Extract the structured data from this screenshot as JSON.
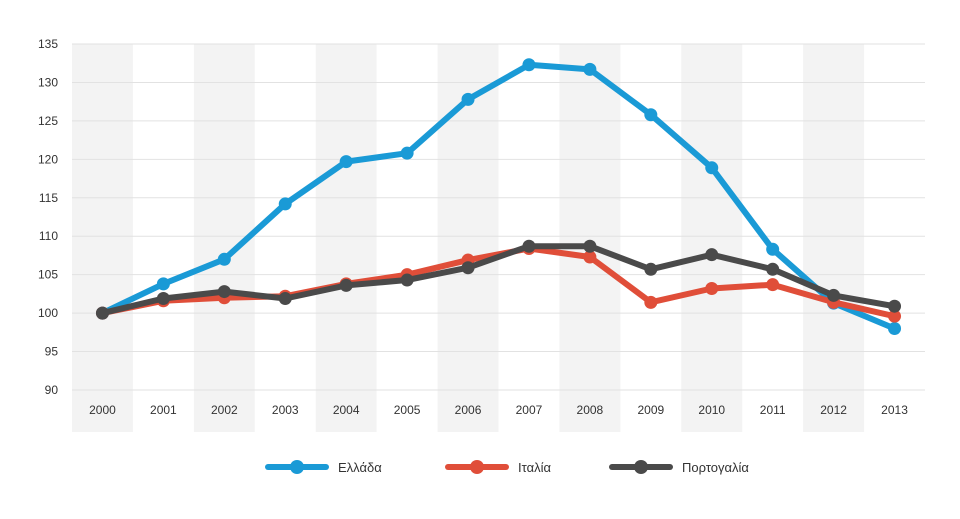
{
  "chart_data": {
    "type": "line",
    "title": "",
    "xlabel": "",
    "ylabel": "",
    "categories": [
      "2000",
      "2001",
      "2002",
      "2003",
      "2004",
      "2005",
      "2006",
      "2007",
      "2008",
      "2009",
      "2010",
      "2011",
      "2012",
      "2013"
    ],
    "ylim": [
      90,
      135
    ],
    "yticks": [
      90,
      95,
      100,
      105,
      110,
      115,
      120,
      125,
      130,
      135
    ],
    "ytick_labels": [
      "90",
      "95",
      "100",
      "105",
      "110",
      "115",
      "120",
      "125",
      "130",
      "135"
    ],
    "grid": true,
    "legend_position": "bottom",
    "series": [
      {
        "name": "Ελλάδα",
        "color": "#1a9ad6",
        "values": [
          100,
          103.8,
          107,
          114.2,
          119.7,
          120.8,
          127.8,
          132.3,
          131.7,
          125.8,
          118.9,
          108.3,
          101.3,
          98
        ]
      },
      {
        "name": "Ιταλία",
        "color": "#e04e39",
        "values": [
          100,
          101.6,
          102,
          102.2,
          103.8,
          105,
          106.9,
          108.4,
          107.3,
          101.4,
          103.2,
          103.7,
          101.4,
          99.6
        ]
      },
      {
        "name": "Πορτογαλία",
        "color": "#4a4a4a",
        "values": [
          100,
          101.9,
          102.8,
          101.9,
          103.6,
          104.3,
          105.9,
          108.7,
          108.7,
          105.7,
          107.6,
          105.7,
          102.3,
          100.9
        ]
      }
    ]
  }
}
